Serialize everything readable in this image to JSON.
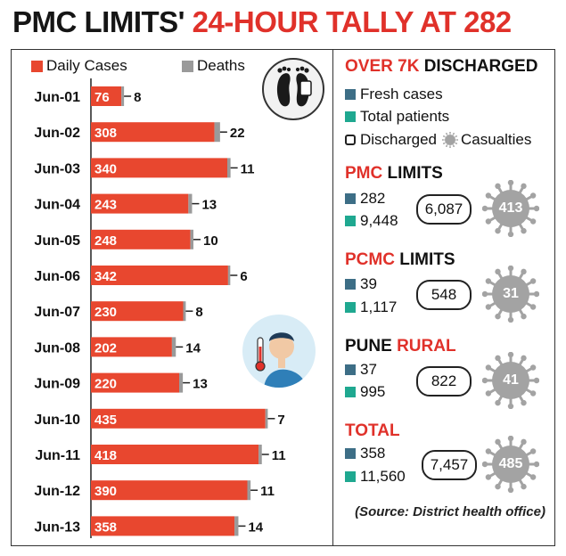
{
  "title_black": "PMC LIMITS'",
  "title_red": "24-HOUR TALLY AT 282",
  "chart_data": {
    "type": "bar",
    "categories": [
      "Jun-01",
      "Jun-02",
      "Jun-03",
      "Jun-04",
      "Jun-05",
      "Jun-06",
      "Jun-07",
      "Jun-08",
      "Jun-09",
      "Jun-10",
      "Jun-11",
      "Jun-12",
      "Jun-13"
    ],
    "series": [
      {
        "name": "Daily Cases",
        "values": [
          76,
          308,
          340,
          243,
          248,
          342,
          230,
          202,
          220,
          435,
          418,
          390,
          358
        ],
        "color": "#e8472f"
      },
      {
        "name": "Deaths",
        "values": [
          8,
          22,
          11,
          13,
          10,
          6,
          8,
          14,
          13,
          7,
          11,
          11,
          14
        ],
        "color": "#9a9a9a"
      }
    ],
    "legend": "top-left",
    "grid": false
  },
  "right_panel": {
    "heading_red": "OVER 7K",
    "heading_black": "DISCHARGED",
    "legend": {
      "fresh": "Fresh cases",
      "total": "Total patients",
      "discharged": "Discharged",
      "casualties": "Casualties"
    },
    "colors": {
      "fresh": "#3d6e86",
      "total": "#1fa890",
      "virus": "#a3a3a3"
    },
    "sections": [
      {
        "label_red": "PMC",
        "label_black": "LIMITS",
        "fresh": "282",
        "total": "9,448",
        "discharged": "6,087",
        "casualties": "413",
        "virus_color": "#a3a3a3"
      },
      {
        "label_red": "PCMC",
        "label_black": "LIMITS",
        "fresh": "39",
        "total": "1,117",
        "discharged": "548",
        "casualties": "31",
        "virus_color": "#a3a3a3"
      },
      {
        "label_red": "RURAL",
        "label_black": "PUNE",
        "fresh": "37",
        "total": "995",
        "discharged": "822",
        "casualties": "41",
        "virus_color": "#a3a3a3"
      },
      {
        "label_red": "TOTAL",
        "label_black": "",
        "fresh": "358",
        "total": "11,560",
        "discharged": "7,457",
        "casualties": "485",
        "virus_color": "#a3a3a3"
      }
    ],
    "source": "(Source: District health office)"
  },
  "icons": {
    "feet": "feet-icon",
    "fever": "fever-thermometer-icon",
    "virus": "virus-icon"
  }
}
